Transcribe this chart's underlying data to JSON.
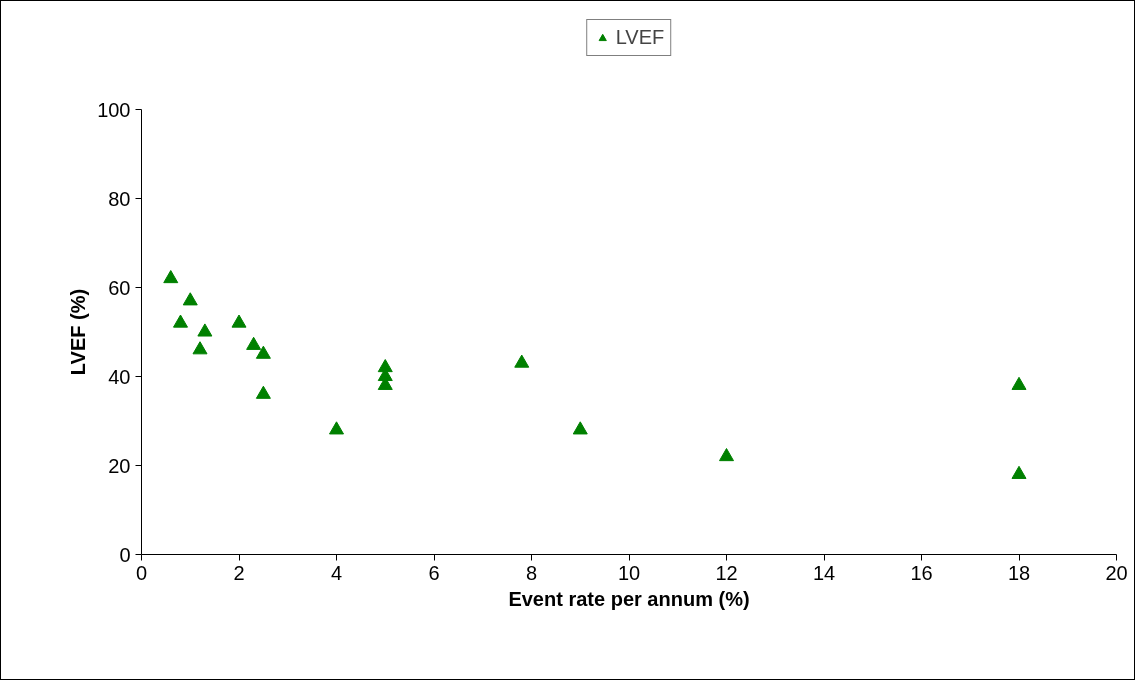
{
  "chart_data": {
    "type": "scatter",
    "xlabel": "Event rate per annum (%)",
    "ylabel": "LVEF (%)",
    "xlim": [
      0,
      20
    ],
    "xticks": [
      0,
      2,
      4,
      6,
      8,
      10,
      12,
      14,
      16,
      18,
      20
    ],
    "ylim": [
      0,
      100
    ],
    "yticks": [
      0,
      20,
      40,
      60,
      80,
      100
    ],
    "grid": false,
    "legend": "top",
    "marker": "triangle",
    "series": [
      {
        "name": "LVEF",
        "color": "#008000",
        "x": [
          0.6,
          0.8,
          1.0,
          1.2,
          1.3,
          2.0,
          2.3,
          2.5,
          2.5,
          4.0,
          5.0,
          5.0,
          5.0,
          7.8,
          9.0,
          12,
          18,
          18
        ],
        "values": [
          62,
          52,
          57,
          46,
          50,
          52,
          47,
          45,
          36,
          28,
          42,
          40,
          38,
          43,
          28,
          22,
          38,
          18
        ]
      }
    ]
  }
}
